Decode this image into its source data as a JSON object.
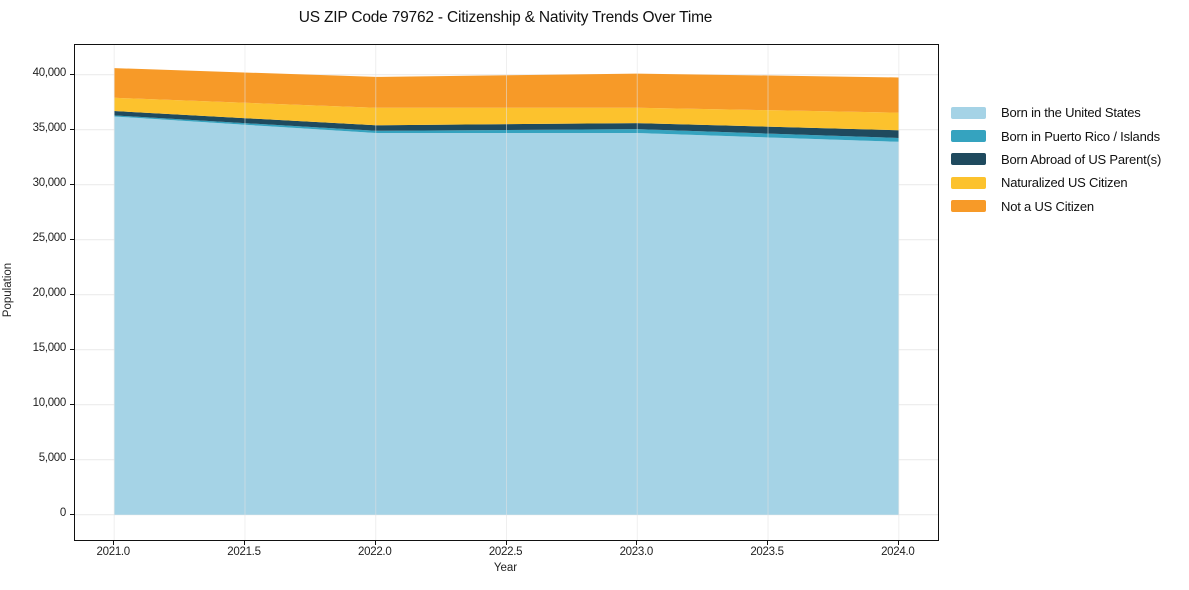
{
  "chart_data": {
    "type": "area",
    "stacked": true,
    "title": "US ZIP Code 79762 - Citizenship & Nativity Trends Over Time",
    "xlabel": "Year",
    "ylabel": "Population",
    "x": [
      2021,
      2022,
      2023,
      2024
    ],
    "series": [
      {
        "name": "Born in the United States",
        "color": "#a5d3e6",
        "values": [
          36200,
          34700,
          34700,
          33900
        ]
      },
      {
        "name": "Born in Puerto Rico / Islands",
        "color": "#35a3bf",
        "values": [
          100,
          200,
          350,
          350
        ]
      },
      {
        "name": "Born Abroad of US Parent(s)",
        "color": "#1f4a5e",
        "values": [
          400,
          500,
          550,
          700
        ]
      },
      {
        "name": "Naturalized US Citizen",
        "color": "#fcc22d",
        "values": [
          1200,
          1600,
          1400,
          1600
        ]
      },
      {
        "name": "Not a US Citizen",
        "color": "#f79a28",
        "values": [
          2700,
          2800,
          3100,
          3200
        ]
      }
    ],
    "xlim": [
      2020.85,
      2024.15
    ],
    "ylim": [
      -2300,
      42700
    ],
    "xticks": {
      "values": [
        2021,
        2021.5,
        2022,
        2022.5,
        2023,
        2023.5,
        2024
      ],
      "labels": [
        "2021.0",
        "2021.5",
        "2022.0",
        "2022.5",
        "2023.0",
        "2023.5",
        "2024.0"
      ]
    },
    "yticks": {
      "values": [
        0,
        5000,
        10000,
        15000,
        20000,
        25000,
        30000,
        35000,
        40000
      ],
      "labels": [
        "0",
        "5,000",
        "10,000",
        "15,000",
        "20,000",
        "25,000",
        "30,000",
        "35,000",
        "40,000"
      ]
    },
    "grid": true,
    "legend_position": "right",
    "colors": {
      "grid": "#e9e9e9",
      "spine": "#111111",
      "background": "#ffffff"
    }
  }
}
